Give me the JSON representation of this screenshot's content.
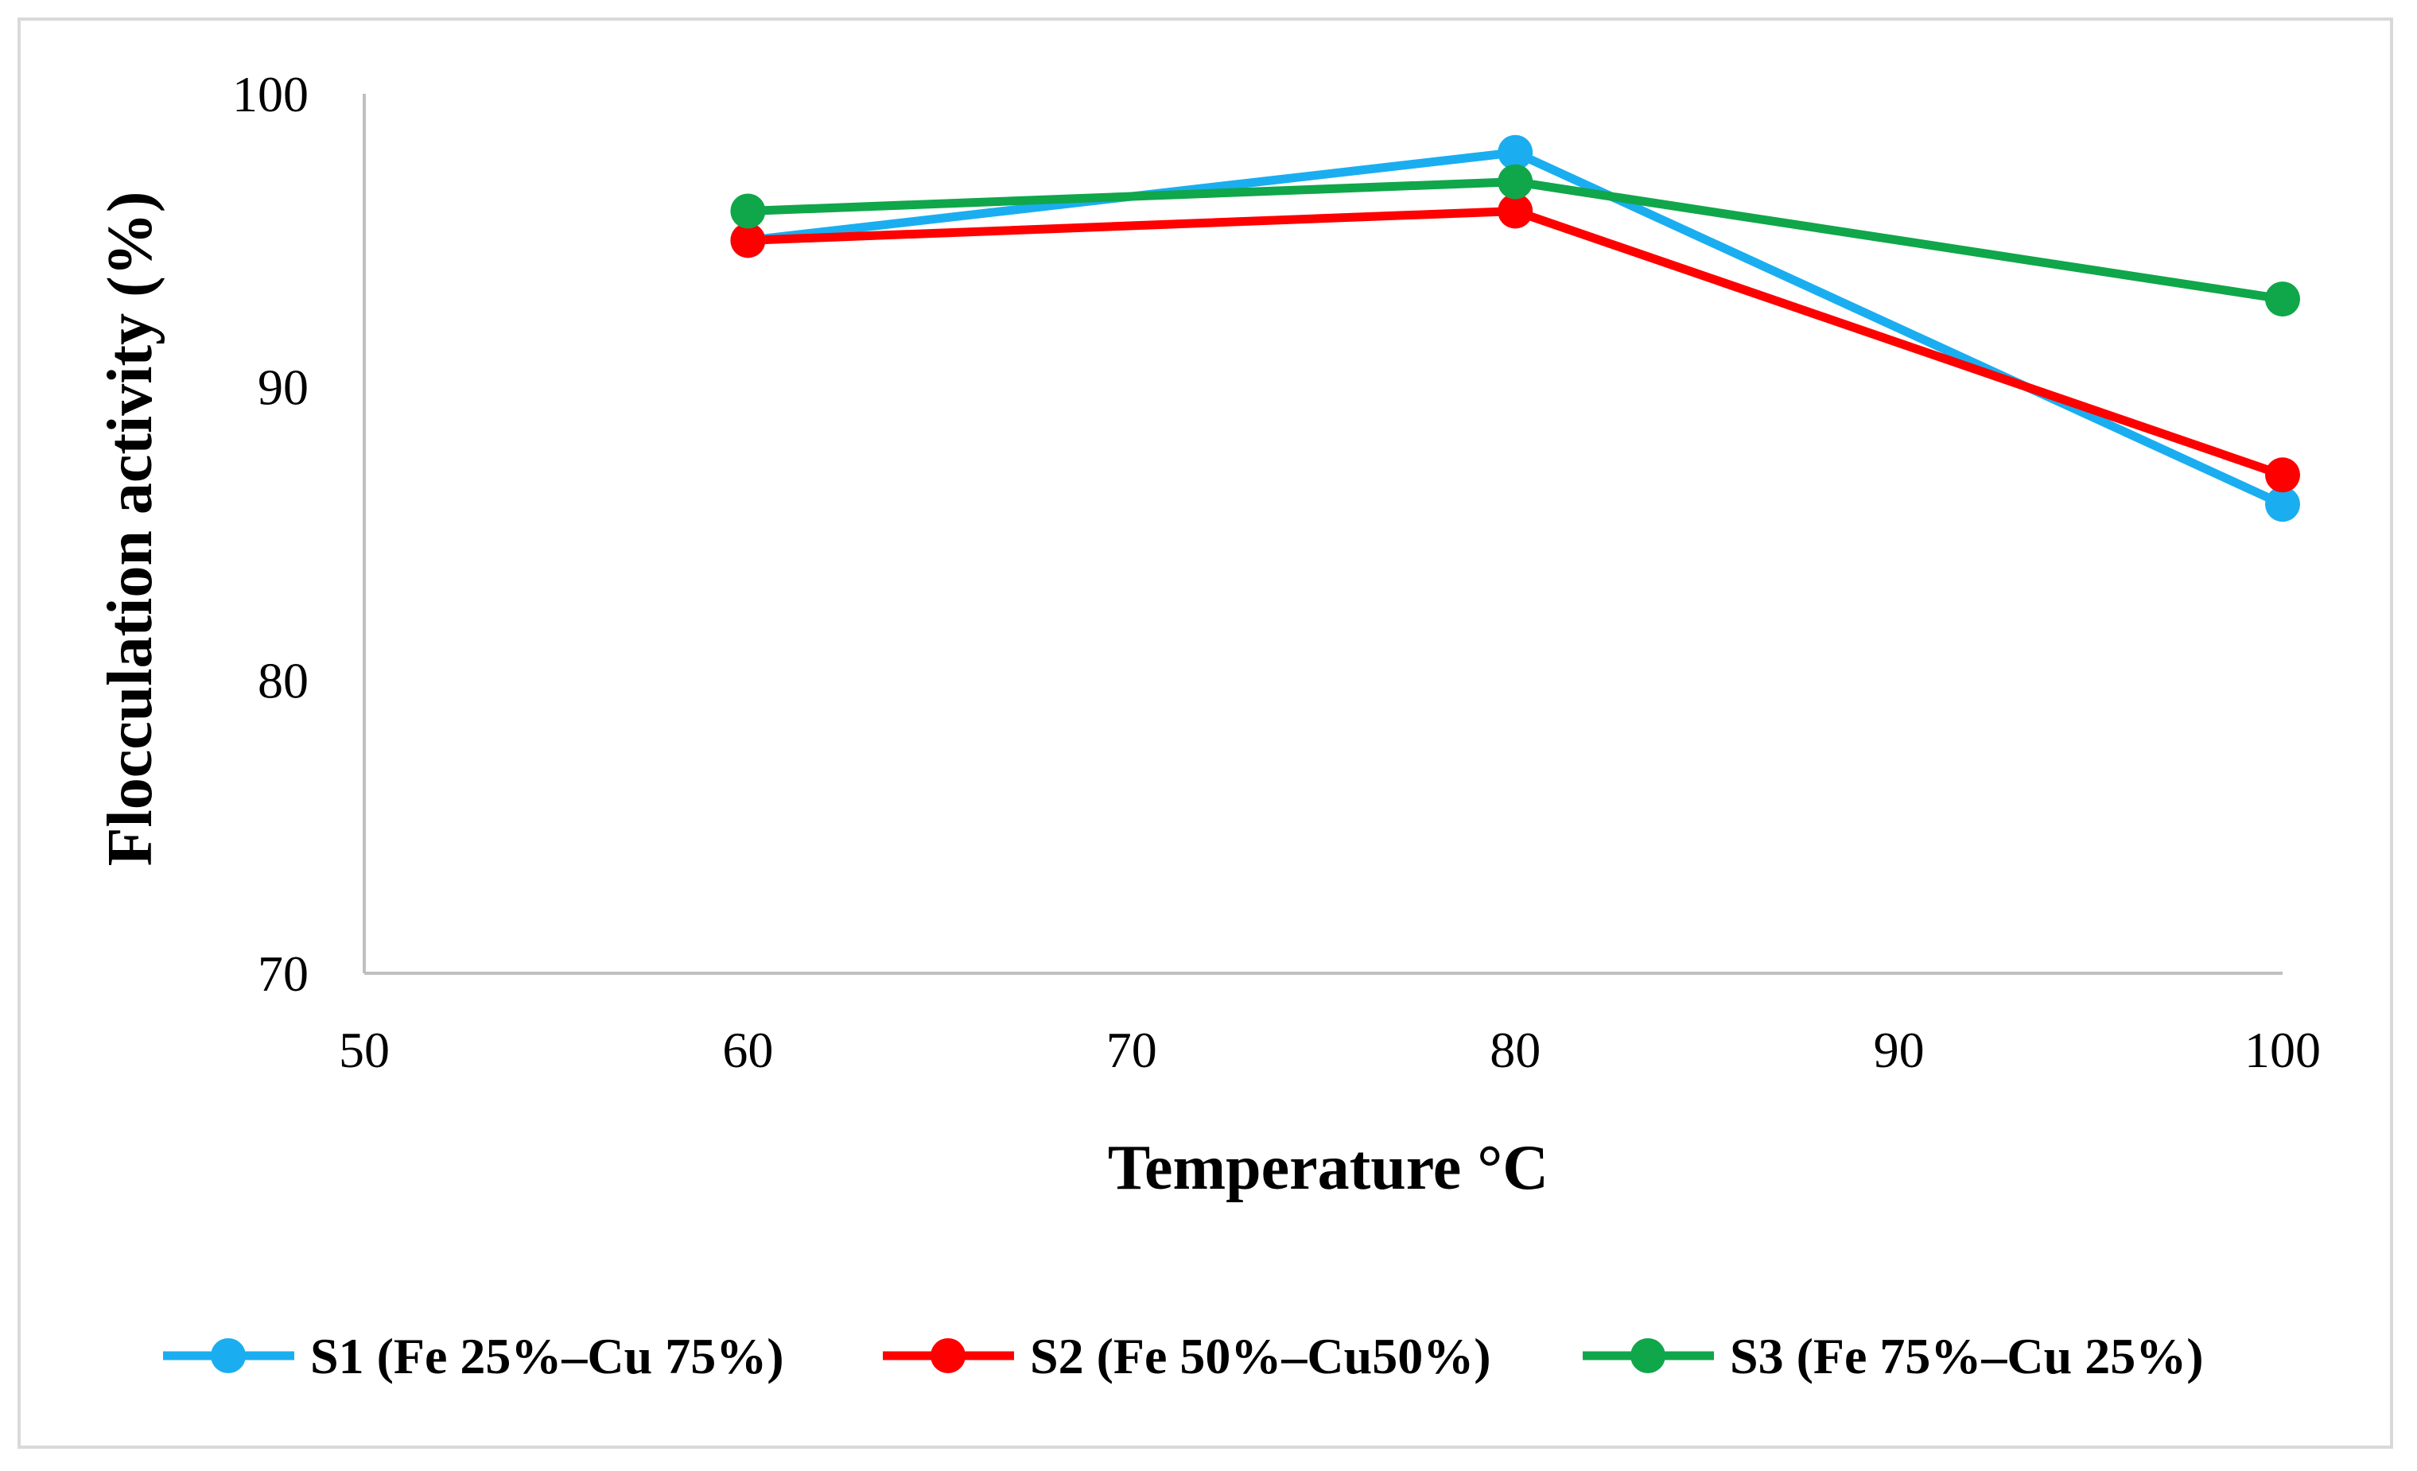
{
  "chart_data": {
    "type": "line",
    "title": "",
    "xlabel": "Temperature °C",
    "ylabel": "Flocculation activity (%)",
    "xlim": [
      50,
      100
    ],
    "ylim": [
      70,
      100
    ],
    "xticks": [
      "50",
      "60",
      "70",
      "80",
      "90",
      "100"
    ],
    "yticks": [
      "70",
      "80",
      "90",
      "100"
    ],
    "x": [
      60,
      80,
      100
    ],
    "grid": false,
    "legend_position": "bottom",
    "series": [
      {
        "name": "S1 (Fe 25%–Cu 75%)",
        "color": "#1aaef0",
        "values": [
          95,
          98,
          86
        ]
      },
      {
        "name": "S2 (Fe 50%–Cu50%)",
        "color": "#ff0000",
        "values": [
          95,
          96,
          87
        ]
      },
      {
        "name": "S3 (Fe 75%–Cu 25%)",
        "color": "#10a64a",
        "values": [
          96,
          97,
          93
        ]
      }
    ]
  }
}
